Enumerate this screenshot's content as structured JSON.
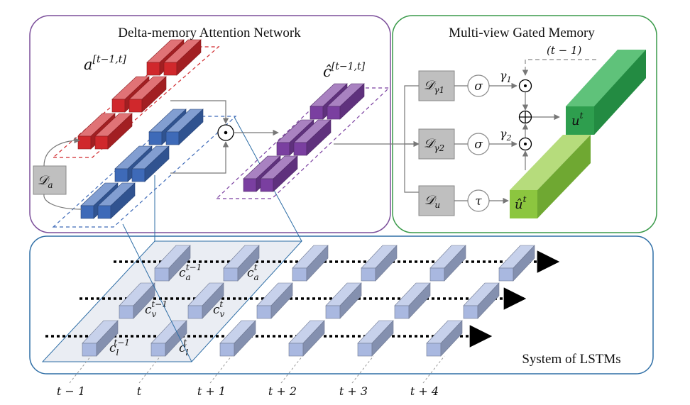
{
  "panels": {
    "dman": {
      "title": "Delta-memory Attention Network",
      "border": "#7B4E9A"
    },
    "mgm": {
      "title": "Multi-view Gated Memory",
      "border": "#3A9A4A"
    },
    "lstm": {
      "title": "System of LSTMs",
      "border": "#2E6EA6"
    }
  },
  "labels": {
    "a_sym": "a",
    "a_sup": "[t−1,t]",
    "c_hat_sym": "ĉ",
    "c_hat_sup": "[t−1,t]",
    "Da_main": "𝒟",
    "Da_sub": "a",
    "Dg1_main": "𝒟",
    "Dg1_sub": "γ1",
    "Dg2_main": "𝒟",
    "Dg2_sub": "γ2",
    "Du_main": "𝒟",
    "Du_sub": "u",
    "sigma": "σ",
    "tau": "τ",
    "gamma1": "γ1",
    "gamma2": "γ2",
    "t_minus_1_top": "(t − 1)",
    "u_sym": "u",
    "u_sup": "t",
    "u_hat_sym": "û",
    "u_hat_sup": "t",
    "odot": "⊙",
    "oplus": "⊕"
  },
  "cells": {
    "ca_prev": {
      "sym": "c",
      "sub": "a",
      "sup": "t−1"
    },
    "ca_cur": {
      "sym": "c",
      "sub": "a",
      "sup": "t"
    },
    "cv_prev": {
      "sym": "c",
      "sub": "v",
      "sup": "t−1"
    },
    "cv_cur": {
      "sym": "c",
      "sub": "v",
      "sup": "t"
    },
    "cl_prev": {
      "sym": "c",
      "sub": "l",
      "sup": "t−1"
    },
    "cl_cur": {
      "sym": "c",
      "sub": "l",
      "sup": "t"
    }
  },
  "timeline": [
    "t − 1",
    "t",
    "t + 1",
    "t + 2",
    "t + 3",
    "t + 4"
  ],
  "colors": {
    "red": "#D0282C",
    "blue": "#3E6AB8",
    "purple": "#7A3FA0",
    "green_dark": "#2E9E4E",
    "green_light": "#8CC63F",
    "lstm_cell": "#A9B8E0",
    "gray_box": "#BFBFBF"
  }
}
